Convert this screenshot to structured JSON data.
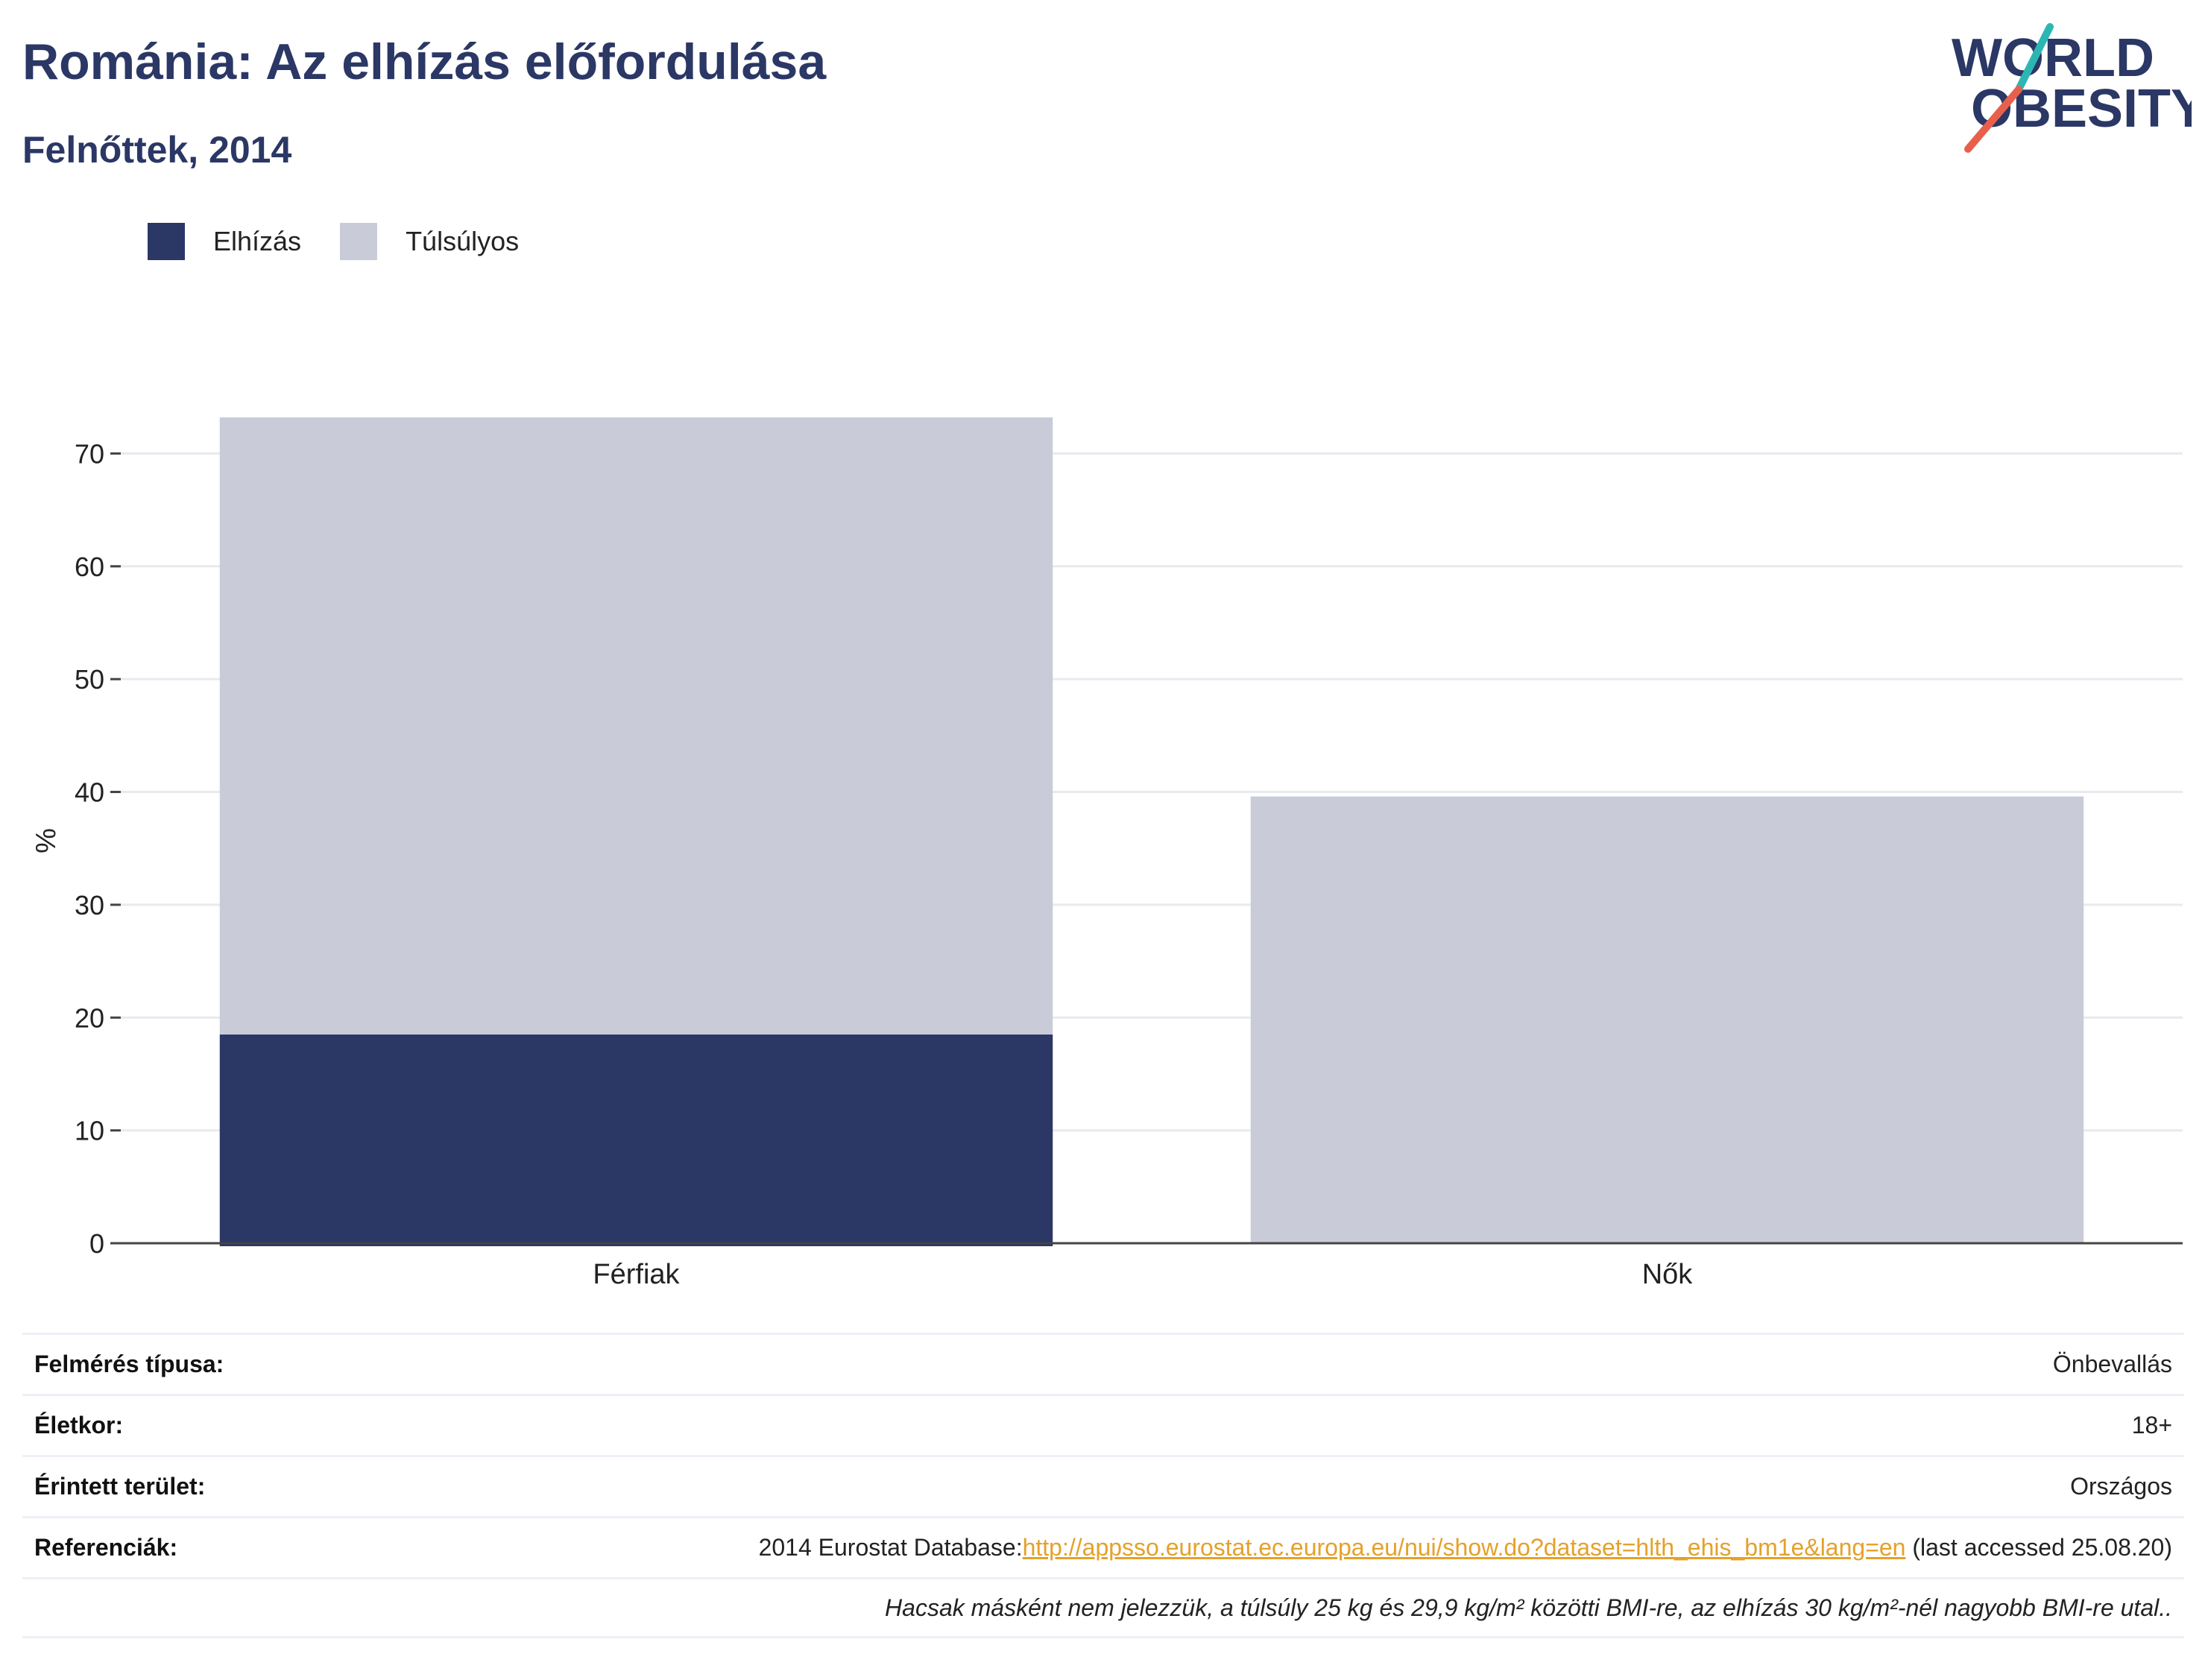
{
  "header": {
    "title": "Románia: Az elhízás előfordulása",
    "subtitle": "Felnőttek, 2014"
  },
  "logo": {
    "line1": "WORLD",
    "line2": "OBESITY",
    "accent_teal": "#2bb6b4",
    "accent_red": "#e8604c"
  },
  "colors": {
    "obesity": "#2b3765",
    "overweight": "#c9ccd8",
    "title": "#2b3765",
    "link": "#e4a12a"
  },
  "chart_data": {
    "type": "bar",
    "stacked": true,
    "categories": [
      "Férfiak",
      "Nők"
    ],
    "series": [
      {
        "name": "Elhízás",
        "values": [
          18.5,
          0
        ]
      },
      {
        "name": "Túlsúlyos",
        "values": [
          54.7,
          39.6
        ]
      }
    ],
    "ylabel": "%",
    "ylim": [
      0,
      73.2
    ],
    "yticks": [
      0,
      10,
      20,
      30,
      40,
      50,
      60,
      70
    ],
    "grid": true,
    "legend_position": "top-left"
  },
  "info": {
    "survey_label": "Felmérés típusa:",
    "survey_value": "Önbevallás",
    "age_label": "Életkor:",
    "age_value": "18+",
    "area_label": "Érintett terület:",
    "area_value": "Országos",
    "ref_label": "Referenciák:",
    "ref_prefix": "2014 Eurostat Database:",
    "ref_link": "http://appsso.eurostat.ec.europa.eu/nui/show.do?dataset=hlth_ehis_bm1e&lang=en",
    "ref_suffix": " (last accessed 25.08.20)",
    "note": "Hacsak másként nem jelezzük, a túlsúly 25 kg és 29,9 kg/m² közötti BMI-re, az elhízás 30 kg/m²-nél nagyobb BMI-re utal.."
  }
}
